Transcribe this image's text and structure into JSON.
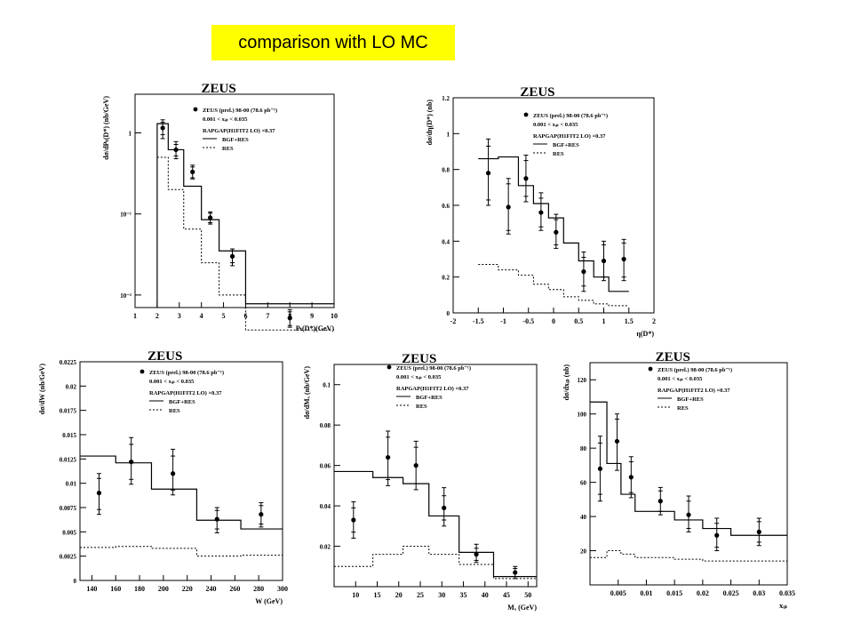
{
  "banner": {
    "text": "comparison with LO MC"
  },
  "common": {
    "collab": "ZEUS",
    "legend_data": "ZEUS (prel.) 98-00 (78.6 pb⁻¹)",
    "legend_cut": "0.001 < xᵢₚ < 0.035",
    "legend_model": "RAPGAP(H1FIT2 LO) ×0.37",
    "legend_solid": "BGF+RES",
    "legend_dashed": "RES"
  },
  "chart_data": [
    {
      "type": "line",
      "title": "ZEUS",
      "xlabel": "Pₜ(D*)(GeV)",
      "ylabel": "dσ/dPₜ(D*) (nb/GeV)",
      "log_y": true,
      "xlim": [
        1,
        10
      ],
      "ylim": [
        0.007,
        3
      ],
      "xticks": [
        1,
        2,
        3,
        4,
        5,
        6,
        7,
        8,
        9,
        10
      ],
      "yticks": [
        {
          "v": 1,
          "label": "1"
        },
        {
          "v": 0.1,
          "label": "10⁻¹"
        },
        {
          "v": 0.01,
          "label": "10⁻²"
        }
      ],
      "edges": [
        2,
        2.5,
        3.2,
        4,
        4.8,
        6,
        10
      ],
      "series": [
        {
          "name": "BGF+RES",
          "style": "solid",
          "values": [
            1.3,
            0.62,
            0.22,
            0.085,
            0.035,
            0.0078
          ]
        },
        {
          "name": "RES",
          "style": "dashed",
          "values": [
            0.5,
            0.2,
            0.065,
            0.025,
            0.01,
            0.0037
          ]
        }
      ],
      "points": [
        {
          "x": 2.25,
          "y": 1.15,
          "stat": [
            0.95,
            1.35
          ],
          "sys": [
            0.85,
            1.45
          ]
        },
        {
          "x": 2.85,
          "y": 0.62,
          "stat": [
            0.52,
            0.72
          ],
          "sys": [
            0.48,
            0.78
          ]
        },
        {
          "x": 3.6,
          "y": 0.33,
          "stat": [
            0.28,
            0.38
          ],
          "sys": [
            0.27,
            0.4
          ]
        },
        {
          "x": 4.4,
          "y": 0.09,
          "stat": [
            0.078,
            0.102
          ],
          "sys": [
            0.075,
            0.106
          ]
        },
        {
          "x": 5.4,
          "y": 0.03,
          "stat": [
            0.025,
            0.035
          ],
          "sys": [
            0.023,
            0.037
          ]
        },
        {
          "x": 8.0,
          "y": 0.0052,
          "stat": [
            0.0042,
            0.0062
          ],
          "sys": [
            0.004,
            0.0066
          ]
        }
      ]
    },
    {
      "type": "line",
      "title": "ZEUS",
      "xlabel": "η(D*)",
      "ylabel": "dσ/dη(D*) (nb)",
      "xlim": [
        -2,
        2
      ],
      "ylim": [
        0,
        1.2
      ],
      "xticks": [
        -2,
        -1.5,
        -1,
        -0.5,
        0,
        0.5,
        1,
        1.5,
        2
      ],
      "yticks": [
        {
          "v": 0,
          "label": "0"
        },
        {
          "v": 0.2,
          "label": "0.2"
        },
        {
          "v": 0.4,
          "label": "0.4"
        },
        {
          "v": 0.6,
          "label": "0.6"
        },
        {
          "v": 0.8,
          "label": "0.8"
        },
        {
          "v": 1,
          "label": "1"
        },
        {
          "v": 1.2,
          "label": "1.2"
        }
      ],
      "edges": [
        -1.5,
        -1.1,
        -0.7,
        -0.4,
        -0.1,
        0.2,
        0.5,
        0.8,
        1.1,
        1.5
      ],
      "series": [
        {
          "name": "BGF+RES",
          "style": "solid",
          "values": [
            0.86,
            0.87,
            0.71,
            0.61,
            0.53,
            0.39,
            0.29,
            0.2,
            0.12
          ]
        },
        {
          "name": "RES",
          "style": "dashed",
          "values": [
            0.27,
            0.24,
            0.21,
            0.16,
            0.13,
            0.09,
            0.07,
            0.05,
            0.04
          ]
        }
      ],
      "points": [
        {
          "x": -1.3,
          "y": 0.78,
          "stat": [
            0.63,
            0.93
          ],
          "sys": [
            0.6,
            0.97
          ]
        },
        {
          "x": -0.9,
          "y": 0.59,
          "stat": [
            0.46,
            0.72
          ],
          "sys": [
            0.44,
            0.75
          ]
        },
        {
          "x": -0.55,
          "y": 0.75,
          "stat": [
            0.65,
            0.85
          ],
          "sys": [
            0.62,
            0.88
          ]
        },
        {
          "x": -0.25,
          "y": 0.56,
          "stat": [
            0.48,
            0.64
          ],
          "sys": [
            0.46,
            0.67
          ]
        },
        {
          "x": 0.05,
          "y": 0.45,
          "stat": [
            0.38,
            0.52
          ],
          "sys": [
            0.36,
            0.55
          ]
        },
        {
          "x": 0.6,
          "y": 0.23,
          "stat": [
            0.15,
            0.31
          ],
          "sys": [
            0.12,
            0.34
          ]
        },
        {
          "x": 1.0,
          "y": 0.29,
          "stat": [
            0.2,
            0.38
          ],
          "sys": [
            0.18,
            0.4
          ]
        },
        {
          "x": 1.4,
          "y": 0.3,
          "stat": [
            0.2,
            0.39
          ],
          "sys": [
            0.18,
            0.41
          ]
        }
      ]
    },
    {
      "type": "line",
      "title": "ZEUS",
      "xlabel": "W (GeV)",
      "ylabel": "dσ/dW (nb/GeV)",
      "xlim": [
        130,
        300
      ],
      "ylim": [
        0,
        0.0225
      ],
      "xticks": [
        140,
        160,
        180,
        200,
        220,
        240,
        260,
        280,
        300
      ],
      "yticks": [
        {
          "v": 0,
          "label": "0"
        },
        {
          "v": 0.0025,
          "label": "0.0025"
        },
        {
          "v": 0.005,
          "label": "0.005"
        },
        {
          "v": 0.0075,
          "label": "0.0075"
        },
        {
          "v": 0.01,
          "label": "0.01"
        },
        {
          "v": 0.0125,
          "label": "0.0125"
        },
        {
          "v": 0.015,
          "label": "0.015"
        },
        {
          "v": 0.0175,
          "label": "0.0175"
        },
        {
          "v": 0.02,
          "label": "0.02"
        },
        {
          "v": 0.0225,
          "label": "0.0225"
        }
      ],
      "edges": [
        130,
        160,
        190,
        228,
        265,
        300
      ],
      "series": [
        {
          "name": "BGF+RES",
          "style": "solid",
          "values": [
            0.0128,
            0.0121,
            0.0094,
            0.0062,
            0.0053
          ]
        },
        {
          "name": "RES",
          "style": "dashed",
          "values": [
            0.0034,
            0.0035,
            0.0033,
            0.0025,
            0.0026
          ]
        }
      ],
      "points": [
        {
          "x": 146,
          "y": 0.009,
          "stat": [
            0.0073,
            0.0105
          ],
          "sys": [
            0.0068,
            0.011
          ]
        },
        {
          "x": 173,
          "y": 0.0122,
          "stat": [
            0.0104,
            0.014
          ],
          "sys": [
            0.0099,
            0.0147
          ]
        },
        {
          "x": 208,
          "y": 0.011,
          "stat": [
            0.0093,
            0.0128
          ],
          "sys": [
            0.0088,
            0.0135
          ]
        },
        {
          "x": 245,
          "y": 0.0063,
          "stat": [
            0.0053,
            0.0072
          ],
          "sys": [
            0.0049,
            0.0075
          ]
        },
        {
          "x": 282,
          "y": 0.0068,
          "stat": [
            0.0058,
            0.0077
          ],
          "sys": [
            0.0055,
            0.008
          ]
        }
      ]
    },
    {
      "type": "line",
      "title": "ZEUS",
      "xlabel": "Mₓ (GeV)",
      "ylabel": "dσ/dMₓ (nb/GeV)",
      "xlim": [
        5,
        52
      ],
      "ylim": [
        0,
        0.11
      ],
      "xticks": [
        10,
        15,
        20,
        25,
        30,
        35,
        40,
        45,
        50
      ],
      "yticks": [
        {
          "v": 0.02,
          "label": "0.02"
        },
        {
          "v": 0.04,
          "label": "0.04"
        },
        {
          "v": 0.06,
          "label": "0.06"
        },
        {
          "v": 0.08,
          "label": "0.08"
        },
        {
          "v": 0.1,
          "label": "0.1"
        }
      ],
      "edges": [
        5,
        14,
        21,
        27,
        34,
        42,
        52
      ],
      "series": [
        {
          "name": "BGF+RES",
          "style": "solid",
          "values": [
            0.057,
            0.054,
            0.051,
            0.035,
            0.017,
            0.005
          ]
        },
        {
          "name": "RES",
          "style": "dashed",
          "values": [
            0.01,
            0.016,
            0.02,
            0.016,
            0.011,
            0.004
          ]
        }
      ],
      "points": [
        {
          "x": 9.5,
          "y": 0.033,
          "stat": [
            0.027,
            0.039
          ],
          "sys": [
            0.024,
            0.042
          ]
        },
        {
          "x": 17.5,
          "y": 0.064,
          "stat": [
            0.053,
            0.074
          ],
          "sys": [
            0.05,
            0.077
          ]
        },
        {
          "x": 24,
          "y": 0.06,
          "stat": [
            0.051,
            0.069
          ],
          "sys": [
            0.048,
            0.072
          ]
        },
        {
          "x": 30.5,
          "y": 0.039,
          "stat": [
            0.033,
            0.045
          ],
          "sys": [
            0.03,
            0.049
          ]
        },
        {
          "x": 38,
          "y": 0.016,
          "stat": [
            0.013,
            0.019
          ],
          "sys": [
            0.012,
            0.021
          ]
        },
        {
          "x": 47,
          "y": 0.007,
          "stat": [
            0.005,
            0.009
          ],
          "sys": [
            0.004,
            0.01
          ]
        }
      ]
    },
    {
      "type": "line",
      "title": "ZEUS",
      "xlabel": "xᵢₚ",
      "ylabel": "dσ/dxᵢₚ (nb)",
      "xlim": [
        0,
        0.035
      ],
      "ylim": [
        0,
        130
      ],
      "xticks": [
        {
          "v": 0.005,
          "label": "0.005"
        },
        {
          "v": 0.01,
          "label": "0.01"
        },
        {
          "v": 0.015,
          "label": "0.015"
        },
        {
          "v": 0.02,
          "label": "0.02"
        },
        {
          "v": 0.025,
          "label": "0.025"
        },
        {
          "v": 0.03,
          "label": "0.03"
        },
        {
          "v": 0.035,
          "label": "0.035"
        }
      ],
      "yticks": [
        {
          "v": 20,
          "label": "20"
        },
        {
          "v": 40,
          "label": "40"
        },
        {
          "v": 60,
          "label": "60"
        },
        {
          "v": 80,
          "label": "80"
        },
        {
          "v": 100,
          "label": "100"
        },
        {
          "v": 120,
          "label": "120"
        }
      ],
      "edges": [
        0,
        0.003,
        0.0055,
        0.008,
        0.015,
        0.02,
        0.025,
        0.035
      ],
      "series": [
        {
          "name": "BGF+RES",
          "style": "solid",
          "values": [
            107,
            71,
            53,
            43,
            38,
            33,
            29
          ]
        },
        {
          "name": "RES",
          "style": "dashed",
          "values": [
            16,
            20,
            18,
            16,
            15,
            14,
            14
          ]
        }
      ],
      "points": [
        {
          "x": 0.0018,
          "y": 68,
          "stat": [
            53,
            83
          ],
          "sys": [
            49,
            87
          ]
        },
        {
          "x": 0.0048,
          "y": 84,
          "stat": [
            71,
            97
          ],
          "sys": [
            67,
            100
          ]
        },
        {
          "x": 0.0073,
          "y": 63,
          "stat": [
            54,
            72
          ],
          "sys": [
            51,
            75
          ]
        },
        {
          "x": 0.0125,
          "y": 49,
          "stat": [
            43,
            55
          ],
          "sys": [
            41,
            57
          ]
        },
        {
          "x": 0.0175,
          "y": 41,
          "stat": [
            33,
            49
          ],
          "sys": [
            31,
            52
          ]
        },
        {
          "x": 0.0225,
          "y": 29,
          "stat": [
            22,
            36
          ],
          "sys": [
            20,
            39
          ]
        },
        {
          "x": 0.03,
          "y": 31,
          "stat": [
            25,
            37
          ],
          "sys": [
            23,
            39
          ]
        }
      ]
    }
  ]
}
